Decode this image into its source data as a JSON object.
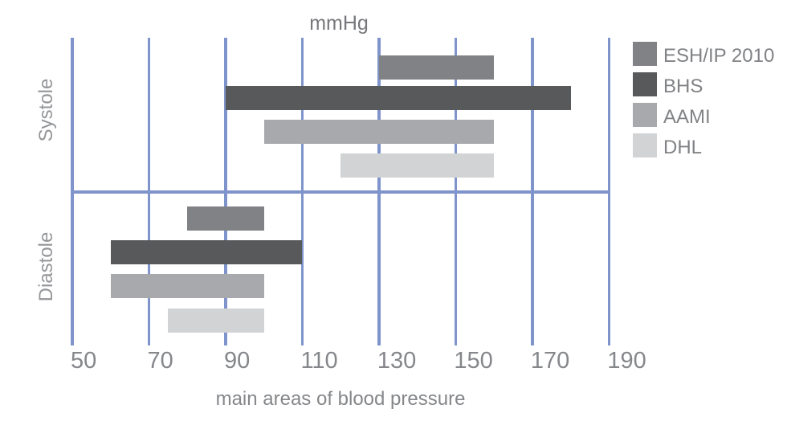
{
  "chart_data": {
    "type": "bar",
    "orientation": "horizontal-range",
    "title": "mmHg",
    "xlabel": "main areas of blood pressure",
    "unit": "mmHg",
    "x_ticks": [
      50,
      70,
      90,
      110,
      130,
      150,
      170,
      190
    ],
    "xlim": [
      50,
      190
    ],
    "grid": "vertical-on",
    "groups": [
      {
        "label": "Systole",
        "series": [
          {
            "name": "ESH/IP 2010",
            "range": [
              130,
              160
            ]
          },
          {
            "name": "BHS",
            "range": [
              90,
              180
            ]
          },
          {
            "name": "AAMI",
            "range": [
              100,
              160
            ]
          },
          {
            "name": "DHL",
            "range": [
              120,
              160
            ]
          }
        ]
      },
      {
        "label": "Diastole",
        "series": [
          {
            "name": "ESH/IP 2010",
            "range": [
              80,
              100
            ]
          },
          {
            "name": "BHS",
            "range": [
              60,
              110
            ]
          },
          {
            "name": "AAMI",
            "range": [
              60,
              100
            ]
          },
          {
            "name": "DHL",
            "range": [
              75,
              100
            ]
          }
        ]
      }
    ],
    "legend": {
      "position": "top-right",
      "entries": [
        {
          "label": "ESH/IP 2010",
          "color": "#808285"
        },
        {
          "label": "BHS",
          "color": "#58595B"
        },
        {
          "label": "AAMI",
          "color": "#A7A9AC"
        },
        {
          "label": "DHL",
          "color": "#D1D3D4"
        }
      ]
    },
    "colors": {
      "gridline": "#7E94CA",
      "axis_text": "#85878A",
      "title_text": "#77787B",
      "section_label_text": "#939598"
    }
  }
}
